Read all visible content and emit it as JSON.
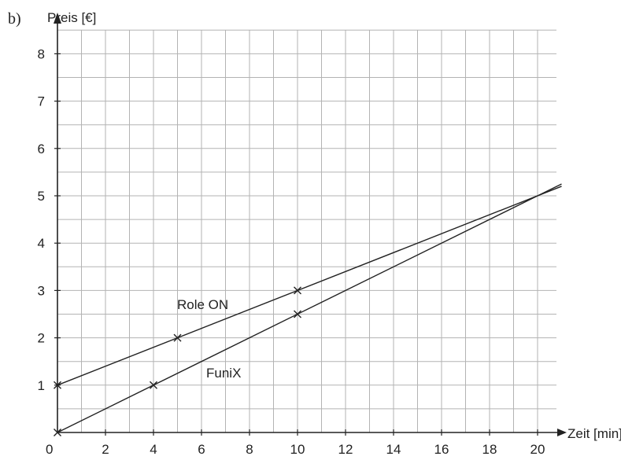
{
  "chart_data": {
    "type": "line",
    "part_label": "b)",
    "ylabel": "Preis [€]",
    "xlabel": "Zeit [min]",
    "xlim": [
      0,
      21
    ],
    "ylim": [
      0,
      8.5
    ],
    "x_ticks": [
      2,
      4,
      6,
      8,
      10,
      12,
      14,
      16,
      18,
      20
    ],
    "y_ticks": [
      1,
      2,
      3,
      4,
      5,
      6,
      7,
      8
    ],
    "origin_label": "0",
    "grid": true,
    "series": [
      {
        "name": "Role ON",
        "line": {
          "x": [
            0,
            21
          ],
          "y": [
            1,
            5.2
          ]
        },
        "points": [
          {
            "x": 0,
            "y": 1
          },
          {
            "x": 5,
            "y": 2
          },
          {
            "x": 10,
            "y": 3
          }
        ]
      },
      {
        "name": "FuniX",
        "line": {
          "x": [
            0,
            21
          ],
          "y": [
            0,
            5.25
          ]
        },
        "points": [
          {
            "x": 0,
            "y": 0
          },
          {
            "x": 4,
            "y": 1
          },
          {
            "x": 10,
            "y": 2.5
          }
        ]
      }
    ]
  }
}
